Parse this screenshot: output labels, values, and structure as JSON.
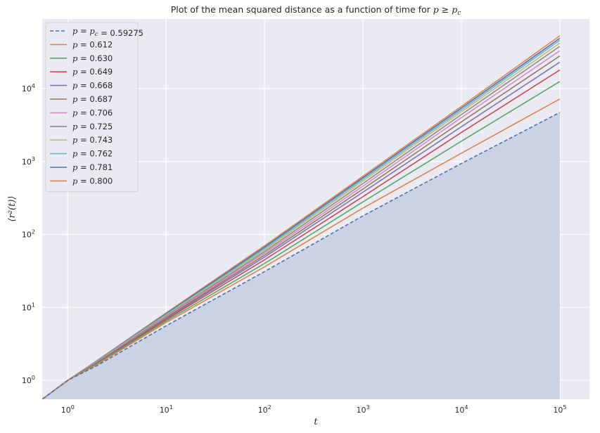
{
  "chart_data": {
    "type": "line",
    "title": "Plot of the mean squared distance as a function of time for p ≥ p_c",
    "xlabel": "t",
    "ylabel": "⟨r²(t)⟩",
    "xscale": "log",
    "yscale": "log",
    "xlim": [
      0.55,
      200000
    ],
    "ylim": [
      0.55,
      90000
    ],
    "grid": true,
    "legend_position": "top-left",
    "x_ticks": [
      {
        "value": 1,
        "base": "10",
        "exp": "0"
      },
      {
        "value": 10,
        "base": "10",
        "exp": "1"
      },
      {
        "value": 100,
        "base": "10",
        "exp": "2"
      },
      {
        "value": 1000,
        "base": "10",
        "exp": "3"
      },
      {
        "value": 10000,
        "base": "10",
        "exp": "4"
      },
      {
        "value": 100000,
        "base": "10",
        "exp": "5"
      }
    ],
    "y_ticks": [
      {
        "value": 1,
        "base": "10",
        "exp": "0"
      },
      {
        "value": 10,
        "base": "10",
        "exp": "1"
      },
      {
        "value": 100,
        "base": "10",
        "exp": "2"
      },
      {
        "value": 1000,
        "base": "10",
        "exp": "3"
      },
      {
        "value": 10000,
        "base": "10",
        "exp": "4"
      }
    ],
    "fill_under_series": 0,
    "fill_color": "#c9d1e3",
    "series": [
      {
        "name": "p = p_c = 0.59275",
        "color": "#4c72b0",
        "dashed": true,
        "x": [
          0.5,
          1,
          2,
          10,
          100,
          1000,
          10000,
          100000
        ],
        "y": [
          0.5,
          1,
          1.6,
          5.6,
          31,
          180,
          940,
          4700
        ]
      },
      {
        "name": "p = 0.612",
        "color": "#dd8452",
        "dashed": false,
        "x": [
          0.5,
          1,
          2,
          10,
          100,
          1000,
          10000,
          100000
        ],
        "y": [
          0.5,
          1,
          1.65,
          6.2,
          36,
          230,
          1300,
          7200
        ]
      },
      {
        "name": "p = 0.630",
        "color": "#55a868",
        "dashed": false,
        "x": [
          0.5,
          1,
          2,
          10,
          100,
          1000,
          10000,
          100000
        ],
        "y": [
          0.5,
          1,
          1.7,
          6.5,
          40,
          280,
          1900,
          12500
        ]
      },
      {
        "name": "p = 0.649",
        "color": "#c44e52",
        "dashed": false,
        "x": [
          0.5,
          1,
          2,
          10,
          100,
          1000,
          10000,
          100000
        ],
        "y": [
          0.5,
          1,
          1.72,
          6.8,
          45,
          330,
          2500,
          18000
        ]
      },
      {
        "name": "p = 0.668",
        "color": "#8172b3",
        "dashed": false,
        "x": [
          0.5,
          1,
          2,
          10,
          100,
          1000,
          10000,
          100000
        ],
        "y": [
          0.5,
          1,
          1.74,
          7.0,
          49,
          380,
          3000,
          23000
        ]
      },
      {
        "name": "p = 0.687",
        "color": "#937860",
        "dashed": false,
        "x": [
          0.5,
          1,
          2,
          10,
          100,
          1000,
          10000,
          100000
        ],
        "y": [
          0.5,
          1,
          1.76,
          7.2,
          52,
          420,
          3500,
          28000
        ]
      },
      {
        "name": "p = 0.706",
        "color": "#da8bc3",
        "dashed": false,
        "x": [
          0.5,
          1,
          2,
          10,
          100,
          1000,
          10000,
          100000
        ],
        "y": [
          0.5,
          1,
          1.78,
          7.4,
          55,
          460,
          4000,
          33000
        ]
      },
      {
        "name": "p = 0.725",
        "color": "#8c8c8c",
        "dashed": false,
        "x": [
          0.5,
          1,
          2,
          10,
          100,
          1000,
          10000,
          100000
        ],
        "y": [
          0.5,
          1,
          1.8,
          7.6,
          58,
          500,
          4400,
          38000
        ]
      },
      {
        "name": "p = 0.743",
        "color": "#ccb974",
        "dashed": false,
        "x": [
          0.5,
          1,
          2,
          10,
          100,
          1000,
          10000,
          100000
        ],
        "y": [
          0.5,
          1,
          1.82,
          7.8,
          61,
          540,
          4800,
          42000
        ]
      },
      {
        "name": "p = 0.762",
        "color": "#64b5cd",
        "dashed": false,
        "x": [
          0.5,
          1,
          2,
          10,
          100,
          1000,
          10000,
          100000
        ],
        "y": [
          0.5,
          1,
          1.84,
          8.0,
          64,
          570,
          5100,
          46000
        ]
      },
      {
        "name": "p = 0.781",
        "color": "#4c72b0",
        "dashed": false,
        "x": [
          0.5,
          1,
          2,
          10,
          100,
          1000,
          10000,
          100000
        ],
        "y": [
          0.5,
          1,
          1.86,
          8.2,
          67,
          600,
          5400,
          49000
        ]
      },
      {
        "name": "p = 0.800",
        "color": "#dd8452",
        "dashed": false,
        "x": [
          0.5,
          1,
          2,
          10,
          100,
          1000,
          10000,
          100000
        ],
        "y": [
          0.5,
          1,
          1.88,
          8.4,
          70,
          630,
          5700,
          53000
        ]
      }
    ]
  }
}
